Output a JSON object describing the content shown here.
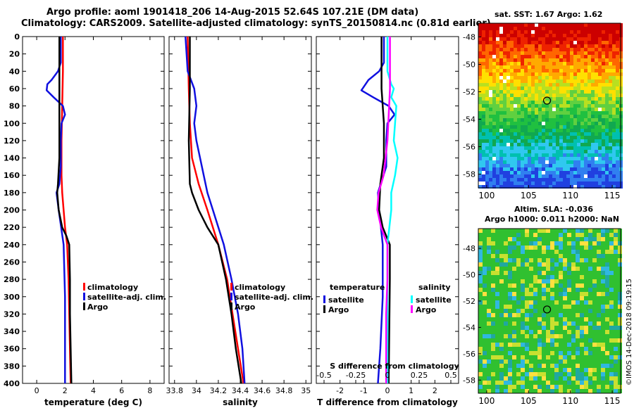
{
  "title_line1": "Argo profile: aoml 1901418_206 14-Aug-2015 52.64S 107.21E (DM data)",
  "title_line2": "Climatology: CARS2009. Satellite-adjusted climatology: synTS_20150814.nc (0.81d earlier)",
  "sst_title": "sat. SST: 1.67 Argo: 1.62",
  "sla_title_line1": "Altim. SLA: -0.036",
  "sla_title_line2": "Argo h1000: 0.011 h2000: NaN",
  "watermark": "©IMOS 14-Dec-2018 09:19:15",
  "colors": {
    "climatology": "#ff0000",
    "satellite": "#1010e0",
    "argo": "#000000",
    "sat_salinity": "#00ffff",
    "argo_salinity": "#ff00ff"
  },
  "chart_data": [
    {
      "type": "line",
      "title": "temperature profile",
      "xlabel": "temperature (deg C)",
      "xlim": [
        -1,
        9
      ],
      "xticks": [
        0,
        2,
        4,
        6,
        8
      ],
      "xtick_labels": [
        "0",
        "2",
        "4",
        "6",
        "8"
      ],
      "ylim": [
        0,
        400
      ],
      "yticks": [
        0,
        20,
        40,
        60,
        80,
        100,
        120,
        140,
        160,
        180,
        200,
        220,
        240,
        260,
        280,
        300,
        320,
        340,
        360,
        380,
        400
      ],
      "ytick_labels": [
        "0",
        "20",
        "40",
        "60",
        "80",
        "100",
        "120",
        "140",
        "160",
        "180",
        "200",
        "220",
        "240",
        "260",
        "280",
        "300",
        "320",
        "340",
        "360",
        "380",
        "400"
      ],
      "legend": [
        "climatology",
        "satellite-adj. clim.",
        "Argo"
      ],
      "series": [
        {
          "name": "climatology",
          "color": "#ff0000",
          "depth": [
            0,
            40,
            80,
            120,
            160,
            180,
            200,
            220,
            240,
            280,
            320,
            360,
            400
          ],
          "values": [
            1.85,
            1.85,
            1.8,
            1.75,
            1.75,
            1.8,
            1.9,
            2.0,
            2.15,
            2.25,
            2.3,
            2.35,
            2.4
          ]
        },
        {
          "name": "satellite-adj. clim.",
          "color": "#1010e0",
          "depth": [
            0,
            30,
            40,
            50,
            55,
            62,
            70,
            80,
            90,
            100,
            120,
            150,
            170,
            180,
            200,
            240,
            300,
            360,
            400
          ],
          "values": [
            1.7,
            1.7,
            1.5,
            1.05,
            0.75,
            0.7,
            1.2,
            1.85,
            2.0,
            1.75,
            1.7,
            1.7,
            1.6,
            1.4,
            1.55,
            1.9,
            2.0,
            2.0,
            2.0
          ]
        },
        {
          "name": "Argo",
          "color": "#000000",
          "depth": [
            0,
            60,
            80,
            100,
            140,
            170,
            180,
            200,
            220,
            230,
            240,
            280,
            320,
            360,
            400
          ],
          "values": [
            1.6,
            1.6,
            1.6,
            1.6,
            1.6,
            1.5,
            1.45,
            1.55,
            1.8,
            2.1,
            2.3,
            2.35,
            2.35,
            2.4,
            2.45
          ]
        }
      ]
    },
    {
      "type": "line",
      "title": "salinity profile",
      "xlabel": "salinity",
      "xlim": [
        33.75,
        35.05
      ],
      "xticks": [
        33.8,
        34,
        34.2,
        34.4,
        34.6,
        34.8,
        35
      ],
      "xtick_labels": [
        "33.8",
        "34",
        "34.2",
        "34.4",
        "34.6",
        "34.8",
        "35"
      ],
      "ylim": [
        0,
        400
      ],
      "legend": [
        "climatology",
        "satellite-adj. clim.",
        "Argo"
      ],
      "series": [
        {
          "name": "climatology",
          "color": "#ff0000",
          "depth": [
            0,
            60,
            100,
            140,
            170,
            200,
            240,
            280,
            320,
            360,
            400
          ],
          "values": [
            33.92,
            33.93,
            33.94,
            33.96,
            34.02,
            34.1,
            34.2,
            34.28,
            34.33,
            34.38,
            34.43
          ]
        },
        {
          "name": "satellite-adj. clim.",
          "color": "#1010e0",
          "depth": [
            0,
            40,
            60,
            80,
            100,
            120,
            150,
            180,
            200,
            240,
            280,
            320,
            360,
            400
          ],
          "values": [
            33.9,
            33.92,
            33.98,
            34.0,
            33.98,
            34.0,
            34.05,
            34.1,
            34.15,
            34.25,
            34.32,
            34.38,
            34.42,
            34.44
          ]
        },
        {
          "name": "Argo",
          "color": "#000000",
          "depth": [
            0,
            60,
            120,
            170,
            180,
            200,
            220,
            240,
            280,
            320,
            360,
            400
          ],
          "values": [
            33.94,
            33.94,
            33.93,
            33.94,
            33.96,
            34.02,
            34.1,
            34.2,
            34.27,
            34.32,
            34.36,
            34.41
          ]
        }
      ]
    },
    {
      "type": "line",
      "title": "difference from climatology",
      "xlabel": "T difference from climatology",
      "xlim": [
        -3,
        3
      ],
      "xticks": [
        -2,
        -1,
        0,
        1,
        2
      ],
      "xtick_labels": [
        "-2",
        "-1",
        "0",
        "1",
        "2"
      ],
      "xlabel_top": "S difference from climatology",
      "xticks_top": [
        -0.5,
        -0.25,
        0,
        0.25,
        0.5
      ],
      "xtick_labels_top": [
        "-0.5",
        "-0.25",
        "0",
        "0.25",
        "0.5"
      ],
      "ylim": [
        0,
        400
      ],
      "legend_groups": [
        "temperature",
        "salinity"
      ],
      "legend": [
        "satellite",
        "Argo",
        "satellite",
        "Argo"
      ],
      "series": [
        {
          "name": "satellite",
          "group": "temperature",
          "color": "#1010e0",
          "depth": [
            0,
            30,
            40,
            50,
            62,
            70,
            80,
            90,
            100,
            120,
            150,
            180,
            200,
            240,
            300,
            360,
            400
          ],
          "values": [
            -0.15,
            -0.15,
            -0.35,
            -0.8,
            -1.1,
            -0.6,
            0.05,
            0.3,
            0.0,
            -0.05,
            -0.05,
            -0.4,
            -0.35,
            -0.2,
            -0.2,
            -0.3,
            -0.4
          ]
        },
        {
          "name": "Argo",
          "group": "temperature",
          "color": "#000000",
          "depth": [
            0,
            60,
            100,
            140,
            170,
            200,
            220,
            240,
            280,
            400
          ],
          "values": [
            -0.25,
            -0.25,
            -0.15,
            -0.15,
            -0.3,
            -0.35,
            -0.2,
            0.1,
            0.1,
            0.05
          ]
        },
        {
          "name": "satellite",
          "group": "salinity",
          "color": "#00ffff",
          "depth": [
            0,
            40,
            55,
            60,
            70,
            80,
            100,
            120,
            140,
            160,
            180,
            200,
            240,
            280,
            320,
            360,
            400
          ],
          "values": [
            0.0,
            0.0,
            0.03,
            0.05,
            0.03,
            0.07,
            0.06,
            0.05,
            0.08,
            0.06,
            0.03,
            0.03,
            0.0,
            0.0,
            0.0,
            0.0,
            0.0
          ]
        },
        {
          "name": "Argo",
          "group": "salinity",
          "color": "#ff00ff",
          "depth": [
            0,
            60,
            120,
            160,
            180,
            200,
            220,
            240,
            280,
            320,
            400
          ],
          "values": [
            0.02,
            0.02,
            0.0,
            -0.03,
            -0.07,
            -0.08,
            -0.05,
            0.0,
            0.0,
            -0.01,
            -0.01
          ]
        }
      ]
    },
    {
      "type": "heatmap",
      "title": "sat. SST: 1.67 Argo: 1.62",
      "xlim": [
        99,
        116
      ],
      "ylim": [
        -59,
        -47
      ],
      "xticks": [
        100,
        105,
        110,
        115
      ],
      "xtick_labels": [
        "100",
        "105",
        "110",
        "115"
      ],
      "yticks": [
        -48,
        -50,
        -52,
        -54,
        -56,
        -58
      ],
      "ytick_labels": [
        "-48",
        "-50",
        "-52",
        "-54",
        "-56",
        "-58"
      ],
      "marker": {
        "lon": 107.21,
        "lat": -52.64
      }
    },
    {
      "type": "heatmap",
      "title": "Altim. SLA: -0.036",
      "xlim": [
        99,
        116
      ],
      "ylim": [
        -59,
        -46.5
      ],
      "xticks": [
        100,
        105,
        110,
        115
      ],
      "xtick_labels": [
        "100",
        "105",
        "110",
        "115"
      ],
      "yticks": [
        -48,
        -50,
        -52,
        -54,
        -56,
        -58
      ],
      "ytick_labels": [
        "-48",
        "-50",
        "-52",
        "-54",
        "-56",
        "-58"
      ],
      "marker": {
        "lon": 107.21,
        "lat": -52.64
      }
    }
  ]
}
